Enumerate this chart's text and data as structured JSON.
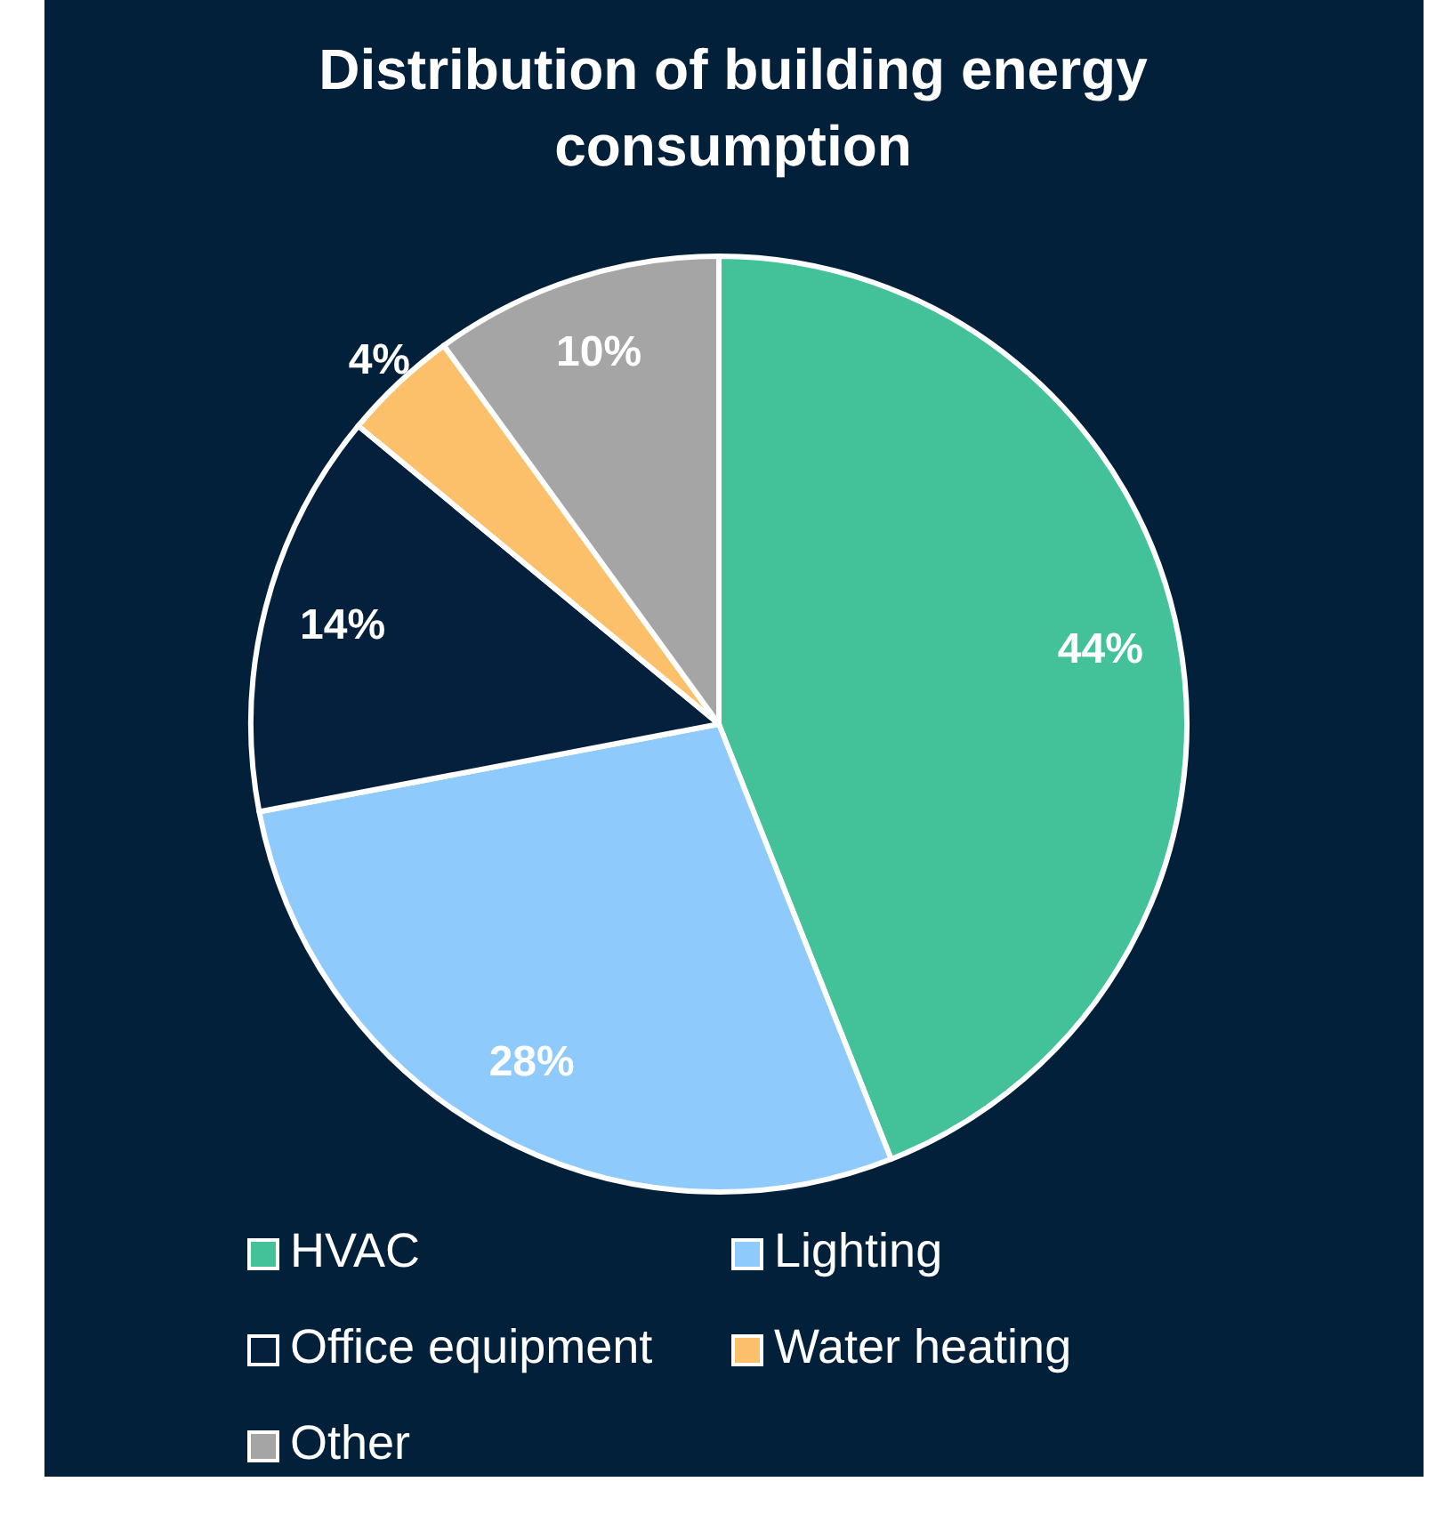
{
  "chart_data": {
    "type": "pie",
    "title": "Distribution of building energy consumption",
    "categories": [
      "HVAC",
      "Lighting",
      "Office equipment",
      "Water heating",
      "Other"
    ],
    "values": [
      44,
      28,
      14,
      4,
      10
    ],
    "value_labels": [
      "44%",
      "28%",
      "14%",
      "4%",
      "10%"
    ],
    "colors": [
      "#43c198",
      "#8fcafc",
      "#04203d",
      "#fdc06a",
      "#a5a5a5"
    ],
    "legend": "bottom"
  }
}
